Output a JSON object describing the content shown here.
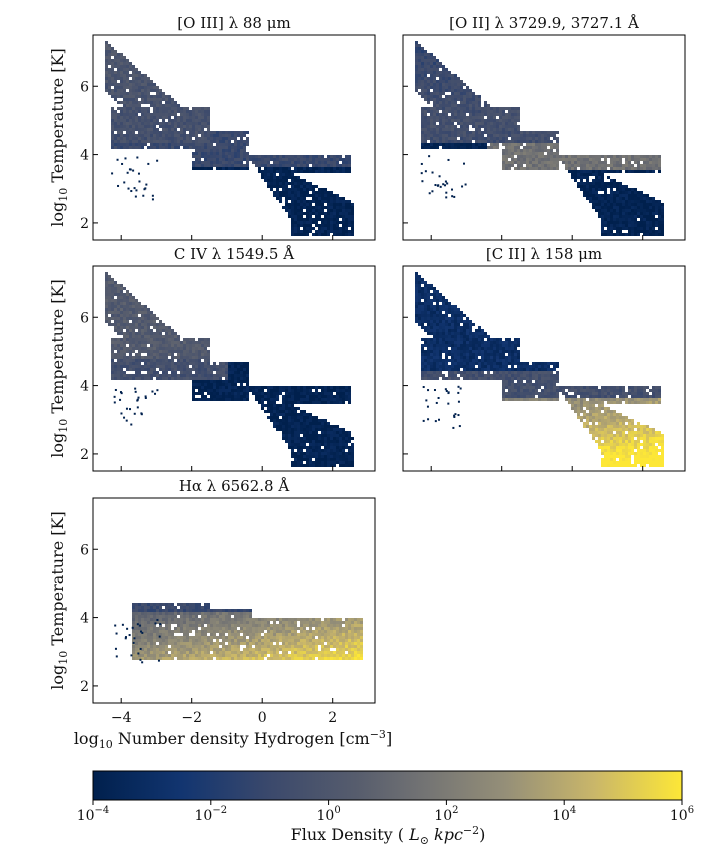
{
  "chart_data": {
    "type": "heatmap",
    "ylabel": "log10 Temperature [K]",
    "xlabel": "log10 Number density Hydrogen [cm-3]",
    "xlim": [
      -4.8,
      3.2
    ],
    "ylim": [
      1.5,
      7.5
    ],
    "x_ticks": [
      -4,
      -2,
      0,
      2
    ],
    "y_ticks": [
      2,
      4,
      6
    ],
    "panels": [
      {
        "title": "[O III] λ 88 μm",
        "dominant_log_flux": -1.5
      },
      {
        "title": "[O II] λ 3729.9, 3727.1 Å",
        "dominant_log_flux": -0.5
      },
      {
        "title": "C IV λ 1549.5 Å",
        "dominant_log_flux": -1.0
      },
      {
        "title": "[C II] λ 158 μm",
        "dominant_log_flux": 2.0
      },
      {
        "title": "Hα λ 6562.8 Å",
        "dominant_log_flux": 3.5
      }
    ],
    "colorbar": {
      "label": "Flux Density ( L⊙ kpc−2)",
      "colormap": "cividis",
      "scale": "log",
      "range": [
        -4,
        6
      ],
      "tick_labels": [
        {
          "base": "10",
          "exp": "−4"
        },
        {
          "base": "10",
          "exp": "−2"
        },
        {
          "base": "10",
          "exp": "0"
        },
        {
          "base": "10",
          "exp": "2"
        },
        {
          "base": "10",
          "exp": "4"
        },
        {
          "base": "10",
          "exp": "6"
        }
      ]
    }
  }
}
